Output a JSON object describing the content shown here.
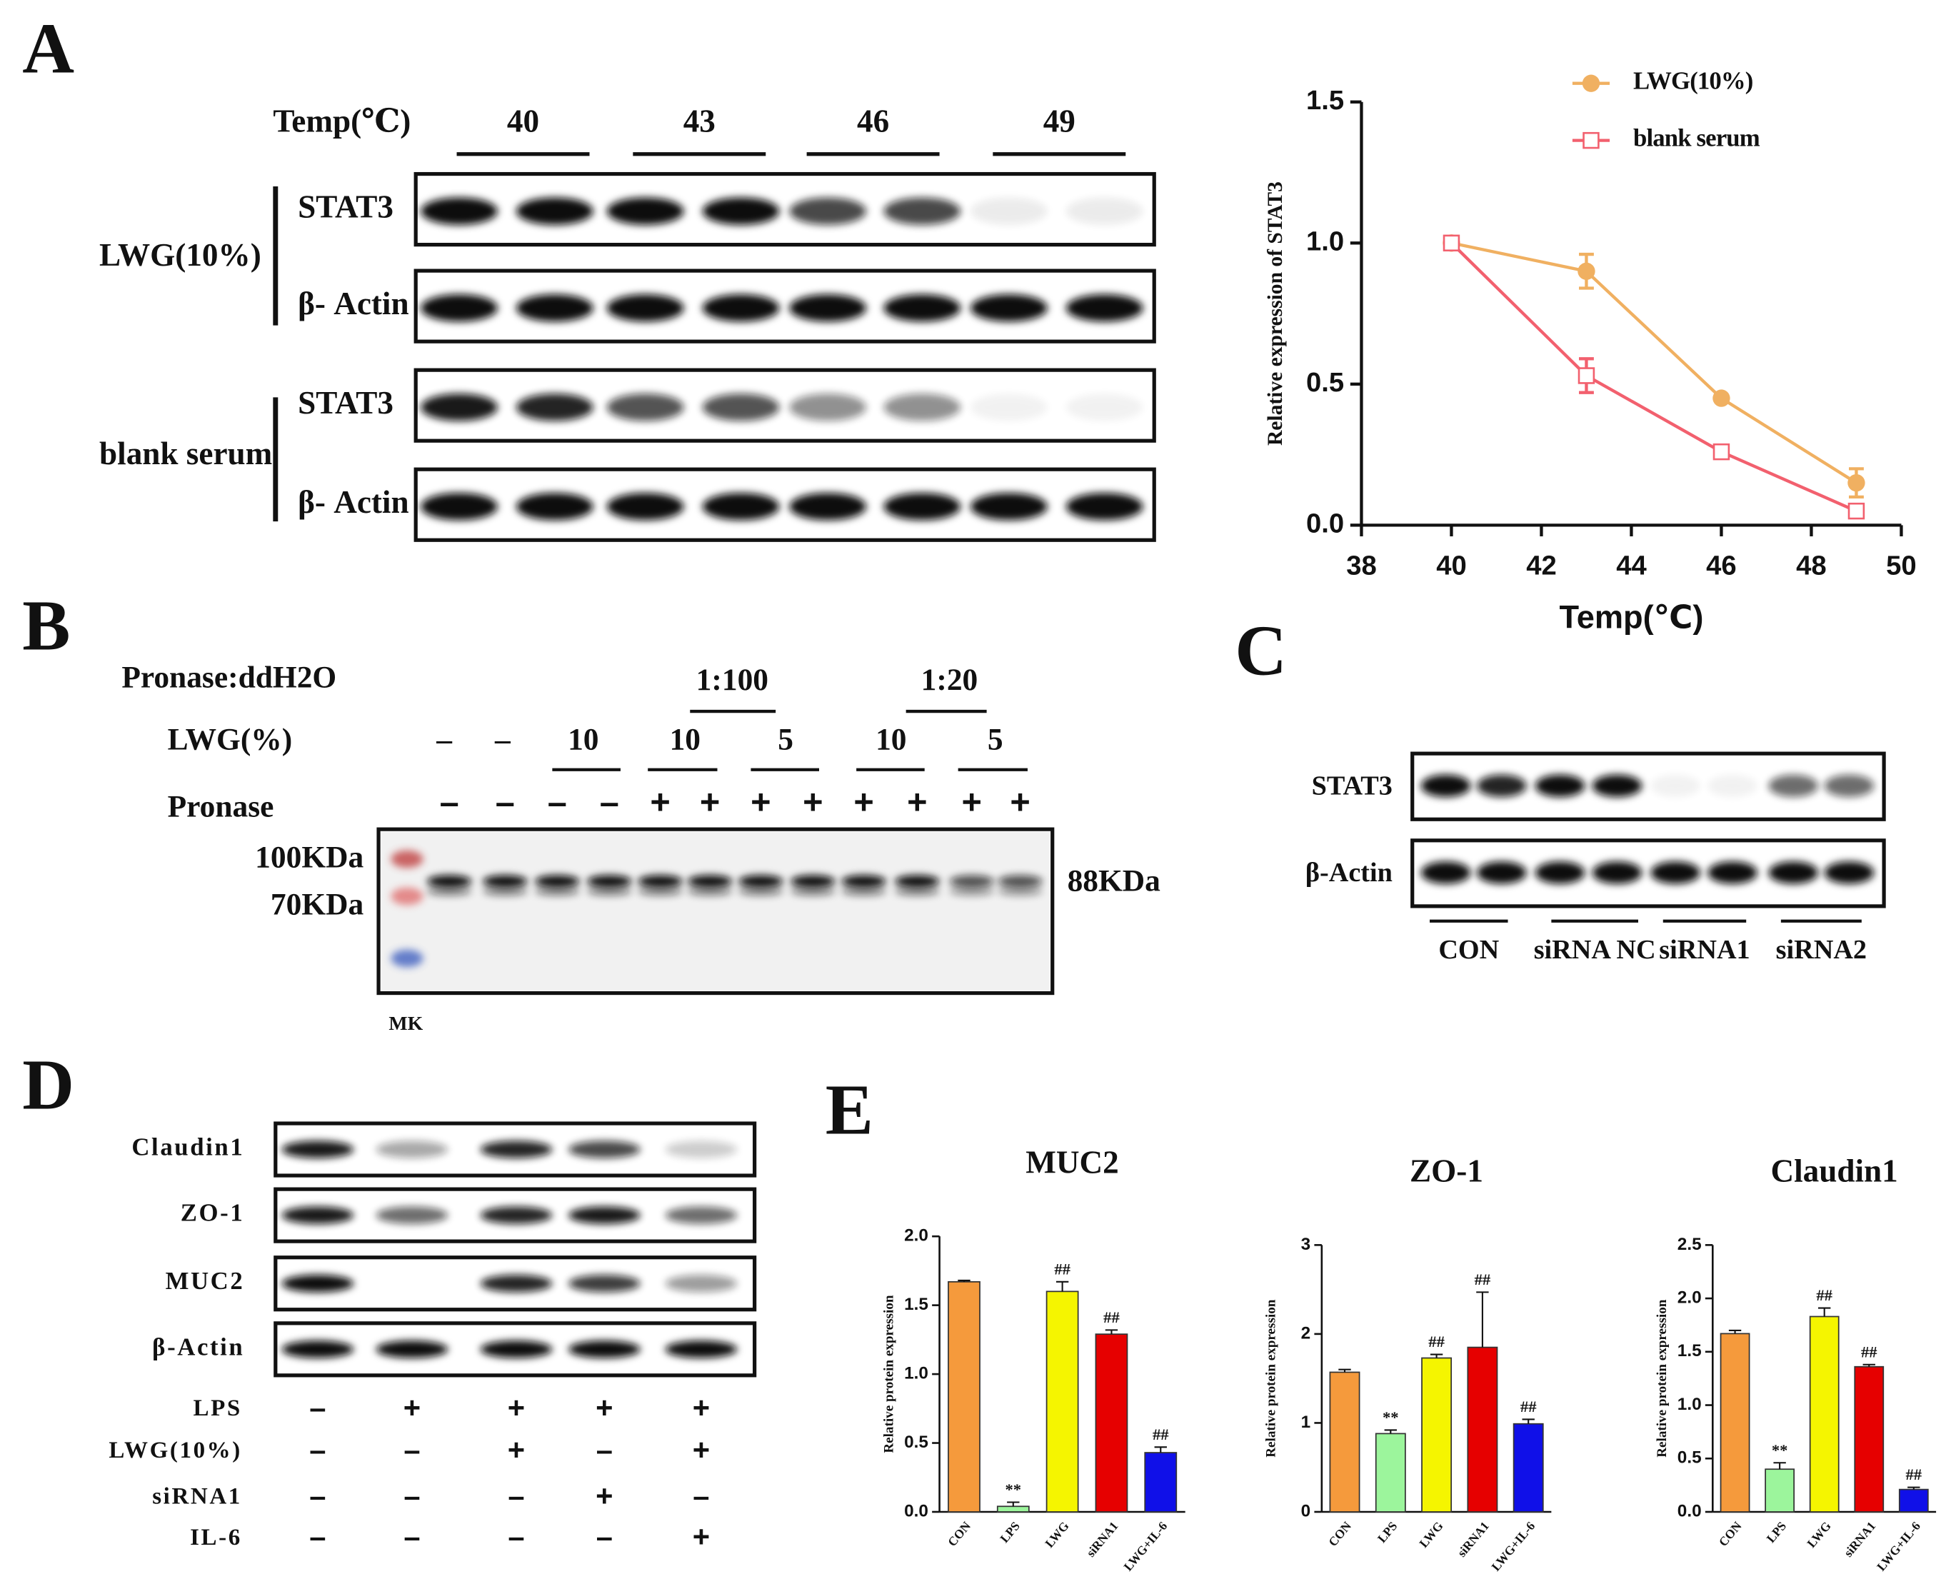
{
  "figure": {
    "panel_labels": [
      "A",
      "B",
      "C",
      "D",
      "E"
    ],
    "blot_a": {
      "header": "Temp(℃)",
      "temps": [
        "40",
        "43",
        "46",
        "49"
      ],
      "groups": [
        "LWG(10%)",
        "blank serum"
      ],
      "rows": [
        "STAT3",
        "β- Actin",
        "STAT3",
        "β- Actin"
      ]
    },
    "blot_b": {
      "ratio_label": "Pronase:ddH2O",
      "ratios": [
        "1:100",
        "1:20"
      ],
      "lwg_label": "LWG(%)",
      "lwg": [
        "–",
        "–",
        "10",
        "10",
        "5",
        "10",
        "5"
      ],
      "pronase_label": "Pronase",
      "pronase": [
        "–",
        "–",
        "–",
        "–",
        "+",
        "+",
        "+",
        "+",
        "+",
        "+",
        "+",
        "+"
      ],
      "markers": [
        "100KDa",
        "70KDa"
      ],
      "size": "88KDa",
      "marker_lane": "MK"
    },
    "blot_c": {
      "rows": [
        "STAT3",
        "β-Actin"
      ],
      "groups": [
        "CON",
        "siRNA NC",
        "siRNA1",
        "siRNA2"
      ]
    },
    "blot_d": {
      "rows": [
        "Claudin1",
        "ZO-1",
        "MUC2",
        "β-Actin"
      ],
      "treatments": [
        {
          "name": "LPS",
          "signs": [
            "–",
            "+",
            "+",
            "+",
            "+"
          ]
        },
        {
          "name": "LWG(10%)",
          "signs": [
            "–",
            "–",
            "+",
            "–",
            "+"
          ]
        },
        {
          "name": "siRNA1",
          "signs": [
            "–",
            "–",
            "–",
            "+",
            "–"
          ]
        },
        {
          "name": "IL-6",
          "signs": [
            "–",
            "–",
            "–",
            "–",
            "+"
          ]
        }
      ]
    }
  },
  "chart_data": [
    {
      "type": "line",
      "x_label": "Temp(℃)",
      "y_label": "Relative expression of STAT3",
      "x": [
        40,
        43,
        46,
        49
      ],
      "xlim": [
        38,
        50
      ],
      "xticks": [
        38,
        40,
        42,
        44,
        46,
        48,
        50
      ],
      "ylim": [
        0,
        1.5
      ],
      "yticks": [
        {
          "value": 0,
          "label": "0.0"
        },
        {
          "value": 0.5,
          "label": "0.5"
        },
        {
          "value": 1,
          "label": "1.0"
        },
        {
          "value": 1.5,
          "label": "1.5"
        }
      ],
      "series": [
        {
          "name": "LWG(10%)",
          "color": "#f0b061",
          "marker": "circle",
          "values": [
            1.0,
            0.9,
            0.45,
            0.15
          ],
          "errors": [
            0.02,
            0.06,
            0.01,
            0.05
          ]
        },
        {
          "name": "blank serum",
          "color": "#f2606e",
          "marker": "open-square",
          "values": [
            1.0,
            0.53,
            0.26,
            0.05
          ],
          "errors": [
            0.01,
            0.06,
            0.01,
            0.02
          ]
        }
      ]
    },
    {
      "type": "bar",
      "title": "MUC2",
      "y_label": "Relative protein expression",
      "categories": [
        "CON",
        "LPS",
        "LWG",
        "siRNA1",
        "LWG+IL-6"
      ],
      "values": [
        1.67,
        0.04,
        1.6,
        1.29,
        0.43
      ],
      "errors": [
        0.01,
        0.03,
        0.07,
        0.03,
        0.04
      ],
      "significance": [
        null,
        "**",
        "##",
        "##",
        "##"
      ],
      "colors": [
        "#f59a3c",
        "#9cf59c",
        "#f5f500",
        "#e60000",
        "#1010e8"
      ],
      "ylim": [
        0,
        2
      ],
      "yticks": [
        {
          "value": 0,
          "label": "0.0"
        },
        {
          "value": 0.5,
          "label": "0.5"
        },
        {
          "value": 1,
          "label": "1.0"
        },
        {
          "value": 1.5,
          "label": "1.5"
        },
        {
          "value": 2,
          "label": "2.0"
        }
      ]
    },
    {
      "type": "bar",
      "title": "ZO-1",
      "y_label": "Relative protein expression",
      "categories": [
        "CON",
        "LPS",
        "LWG",
        "siRNA1",
        "LWG+IL-6"
      ],
      "values": [
        1.57,
        0.88,
        1.73,
        1.85,
        0.99
      ],
      "errors": [
        0.03,
        0.04,
        0.04,
        0.62,
        0.05
      ],
      "significance": [
        null,
        "**",
        "##",
        "##",
        "##"
      ],
      "colors": [
        "#f59a3c",
        "#9cf59c",
        "#f5f500",
        "#e60000",
        "#1010e8"
      ],
      "ylim": [
        0,
        3
      ],
      "yticks": [
        0,
        1,
        2,
        3
      ]
    },
    {
      "type": "bar",
      "title": "Claudin1",
      "y_label": "Relative protein expression",
      "categories": [
        "CON",
        "LPS",
        "LWG",
        "siRNA1",
        "LWG+IL-6"
      ],
      "values": [
        1.67,
        0.4,
        1.83,
        1.36,
        0.21
      ],
      "errors": [
        0.03,
        0.06,
        0.08,
        0.02,
        0.02
      ],
      "significance": [
        null,
        "**",
        "##",
        "##",
        "##"
      ],
      "colors": [
        "#f59a3c",
        "#9cf59c",
        "#f5f500",
        "#e60000",
        "#1010e8"
      ],
      "ylim": [
        0,
        2.5
      ],
      "yticks": [
        {
          "value": 0,
          "label": "0.0"
        },
        {
          "value": 0.5,
          "label": "0.5"
        },
        {
          "value": 1,
          "label": "1.0"
        },
        {
          "value": 1.5,
          "label": "1.5"
        },
        {
          "value": 2,
          "label": "2.0"
        },
        {
          "value": 2.5,
          "label": "2.5"
        }
      ]
    }
  ]
}
